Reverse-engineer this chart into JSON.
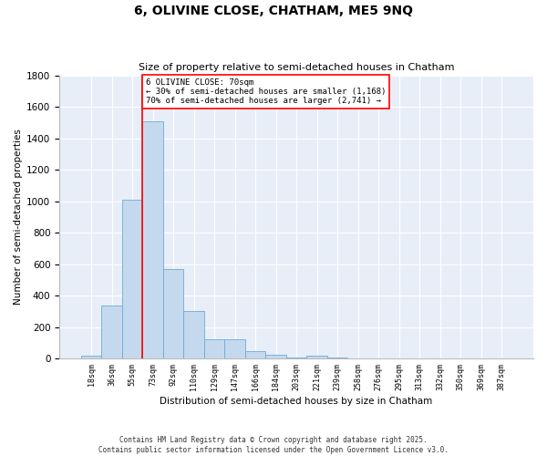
{
  "title_line1": "6, OLIVINE CLOSE, CHATHAM, ME5 9NQ",
  "title_line2": "Size of property relative to semi-detached houses in Chatham",
  "xlabel": "Distribution of semi-detached houses by size in Chatham",
  "ylabel": "Number of semi-detached properties",
  "bin_labels": [
    "18sqm",
    "36sqm",
    "55sqm",
    "73sqm",
    "92sqm",
    "110sqm",
    "129sqm",
    "147sqm",
    "166sqm",
    "184sqm",
    "203sqm",
    "221sqm",
    "239sqm",
    "258sqm",
    "276sqm",
    "295sqm",
    "313sqm",
    "332sqm",
    "350sqm",
    "369sqm",
    "387sqm"
  ],
  "bar_values": [
    20,
    335,
    1010,
    1510,
    570,
    300,
    120,
    120,
    45,
    25,
    5,
    20,
    5,
    0,
    0,
    0,
    0,
    0,
    0,
    0,
    0
  ],
  "bar_color": "#c5d9ee",
  "bar_edge_color": "#6eaad4",
  "bar_edge_width": 0.6,
  "red_line_index": 3,
  "annotation_box_text": "6 OLIVINE CLOSE: 70sqm\n← 30% of semi-detached houses are smaller (1,168)\n70% of semi-detached houses are larger (2,741) →",
  "ylim": [
    0,
    1800
  ],
  "yticks": [
    0,
    200,
    400,
    600,
    800,
    1000,
    1200,
    1400,
    1600,
    1800
  ],
  "background_color": "#e8eef8",
  "grid_color": "#ffffff",
  "fig_bg_color": "#ffffff",
  "footer_line1": "Contains HM Land Registry data © Crown copyright and database right 2025.",
  "footer_line2": "Contains public sector information licensed under the Open Government Licence v3.0."
}
